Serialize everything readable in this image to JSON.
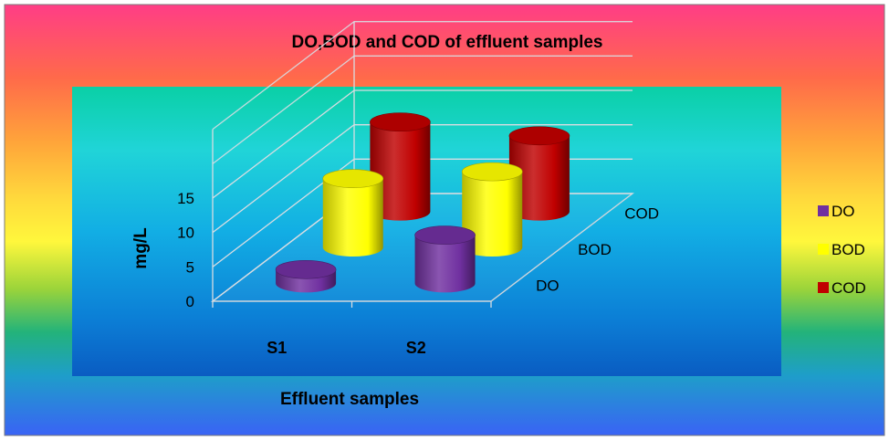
{
  "chart_data": {
    "type": "bar",
    "title": "DO,BOD and COD  of effluent samples",
    "xlabel": "Effluent samples",
    "ylabel": "mg/L",
    "categories": [
      "S1",
      "S2"
    ],
    "depth_labels": [
      "DO",
      "BOD",
      "COD"
    ],
    "yticks": [
      "0",
      "5",
      "10",
      "15"
    ],
    "ylim": [
      0,
      15
    ],
    "grid": true,
    "legend": {
      "position": "right",
      "entries": [
        "DO",
        "BOD",
        "COD"
      ]
    },
    "series": [
      {
        "name": "DO",
        "values": [
          2,
          7
        ],
        "color": "#7030A0"
      },
      {
        "name": "BOD",
        "values": [
          10,
          11
        ],
        "color": "#FFFF00"
      },
      {
        "name": "COD",
        "values": [
          13,
          11
        ],
        "color": "#C00000"
      }
    ]
  }
}
